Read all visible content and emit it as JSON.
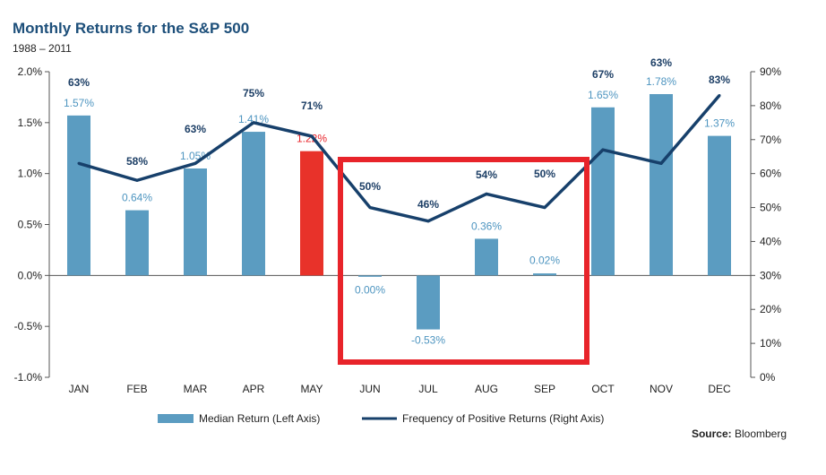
{
  "title": "Monthly Returns for the S&P 500",
  "subtitle": "1988 – 2011",
  "source_label": "Source:",
  "source_value": "Bloomberg",
  "colors": {
    "bar": "#5b9cc1",
    "bar_highlight": "#e8322a",
    "line": "#17406b",
    "box": "#e8242a",
    "label_blue": "#4e95c0",
    "label_red": "#e8242a"
  },
  "chart_data": {
    "type": "bar",
    "categories": [
      "JAN",
      "FEB",
      "MAR",
      "APR",
      "MAY",
      "JUN",
      "JUL",
      "AUG",
      "SEP",
      "OCT",
      "NOV",
      "DEC"
    ],
    "series": [
      {
        "name": "Median Return (Left Axis)",
        "type": "bar",
        "axis": "left",
        "values": [
          1.57,
          0.64,
          1.05,
          1.41,
          1.22,
          0.0,
          -0.53,
          0.36,
          0.02,
          1.65,
          1.78,
          1.37
        ],
        "labels": [
          "1.57%",
          "0.64%",
          "1.05%",
          "1.41%",
          "1.22%",
          "0.00%",
          "-0.53%",
          "0.36%",
          "0.02%",
          "1.65%",
          "1.78%",
          "1.37%"
        ],
        "highlight_index": 4
      },
      {
        "name": "Frequency of Positive Returns (Right Axis)",
        "type": "line",
        "axis": "right",
        "values": [
          63,
          58,
          63,
          75,
          71,
          50,
          46,
          54,
          50,
          67,
          63,
          83
        ],
        "labels": [
          "63%",
          "58%",
          "63%",
          "75%",
          "71%",
          "50%",
          "46%",
          "54%",
          "50%",
          "67%",
          "63%",
          "83%"
        ]
      }
    ],
    "left_axis": {
      "ylim": [
        -1.0,
        2.0
      ],
      "ticks": [
        -1.0,
        -0.5,
        0.0,
        0.5,
        1.0,
        1.5,
        2.0
      ],
      "tick_labels": [
        "-1.0%",
        "-0.5%",
        "0.0%",
        "0.5%",
        "1.0%",
        "1.5%",
        "2.0%"
      ]
    },
    "right_axis": {
      "ylim": [
        0,
        90
      ],
      "ticks": [
        0,
        10,
        20,
        30,
        40,
        50,
        60,
        70,
        80,
        90
      ],
      "tick_labels": [
        "0%",
        "10%",
        "20%",
        "30%",
        "40%",
        "50%",
        "60%",
        "70%",
        "80%",
        "90%"
      ]
    },
    "highlight_box_months": [
      "JUN",
      "JUL",
      "AUG",
      "SEP"
    ],
    "legend_position": "bottom",
    "grid": false
  }
}
